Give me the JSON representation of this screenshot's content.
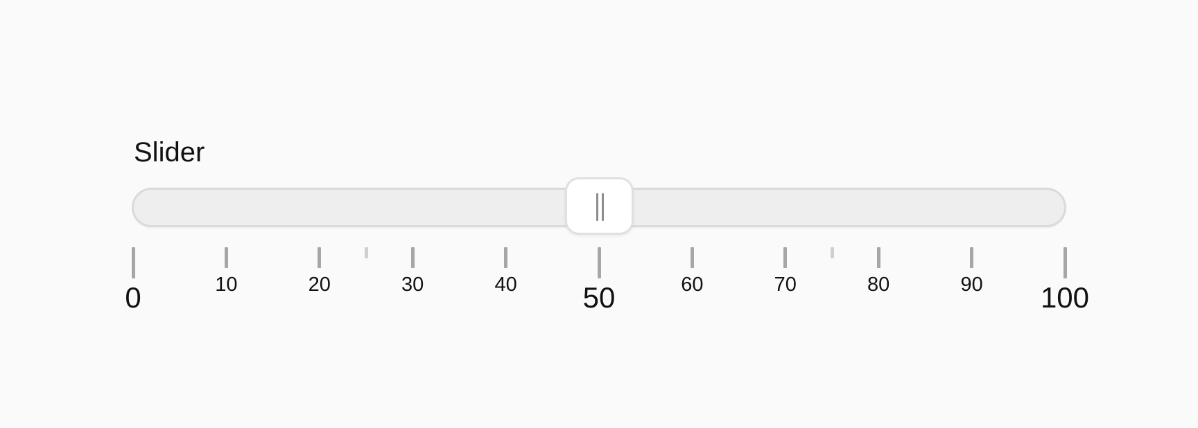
{
  "slider": {
    "label": "Slider",
    "min": 0,
    "max": 100,
    "value": 50
  },
  "scale": {
    "ticks": [
      {
        "value": 0,
        "kind": "major",
        "label": "0"
      },
      {
        "value": 10,
        "kind": "normal",
        "label": "10"
      },
      {
        "value": 20,
        "kind": "normal",
        "label": "20"
      },
      {
        "value": 25,
        "kind": "minor",
        "label": ""
      },
      {
        "value": 30,
        "kind": "normal",
        "label": "30"
      },
      {
        "value": 40,
        "kind": "normal",
        "label": "40"
      },
      {
        "value": 50,
        "kind": "major",
        "label": "50"
      },
      {
        "value": 60,
        "kind": "normal",
        "label": "60"
      },
      {
        "value": 70,
        "kind": "normal",
        "label": "70"
      },
      {
        "value": 75,
        "kind": "minor",
        "label": ""
      },
      {
        "value": 80,
        "kind": "normal",
        "label": "80"
      },
      {
        "value": 90,
        "kind": "normal",
        "label": "90"
      },
      {
        "value": 100,
        "kind": "major",
        "label": "100"
      }
    ]
  },
  "icons": {
    "thumb_grip": "grip-lines-icon"
  }
}
